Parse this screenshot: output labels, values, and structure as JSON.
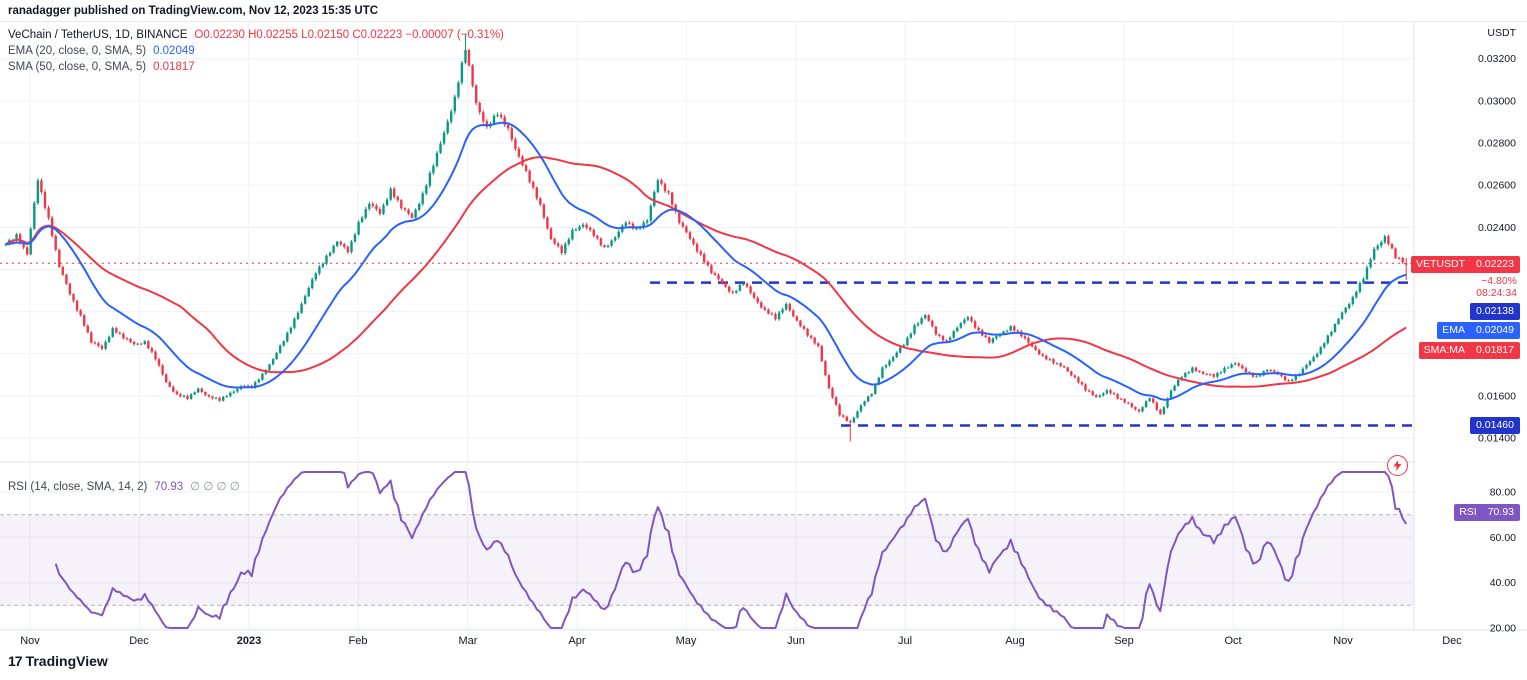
{
  "header": {
    "published_line": "ranadagger published on TradingView.com, Nov 12, 2023 15:35 UTC"
  },
  "legend": {
    "series_title": "VeChain / TetherUS, 1D, BINANCE",
    "ohlc": "O0.02230  H0.02255  L0.02150  C0.02223  −0.00007 (−0.31%)",
    "ema_label": "EMA (20, close, 0, SMA, 5)",
    "ema_value": "0.02049",
    "sma_label": "SMA (50, close, 0, SMA, 5)",
    "sma_value": "0.01817",
    "rsi_label": "RSI (14, close, SMA, 14, 2)",
    "rsi_value": "70.93",
    "rsi_hidden": "∅ ∅ ∅ ∅"
  },
  "axis": {
    "currency": "USDT",
    "price_tick_labels": [
      "0.03200",
      "0.03000",
      "0.02800",
      "0.02600",
      "0.02400",
      "0.01600",
      "0.01400"
    ],
    "price_tick_values": [
      0.032,
      0.03,
      0.028,
      0.026,
      0.024,
      0.016,
      0.014
    ],
    "rsi_tick_labels": [
      "80.00",
      "60.00",
      "40.00",
      "20.00"
    ],
    "rsi_tick_values": [
      80,
      60,
      40,
      20
    ],
    "symbol_badge": {
      "label": "VETUSDT",
      "value": "0.02223"
    },
    "countdown": {
      "change_pct": "−4.80%",
      "time": "08:24:34"
    },
    "level_badges": [
      "0.02138",
      "0.01460"
    ],
    "ema_badge": {
      "label": "EMA",
      "value": "0.02049"
    },
    "sma_badge": {
      "label": "SMA:MA",
      "value": "0.01817"
    },
    "rsi_badge": {
      "label": "RSI",
      "value": "70.93"
    }
  },
  "footer": {
    "logo_mark": "17",
    "brand": "TradingView"
  },
  "colors": {
    "up": "#089981",
    "down": "#f23645",
    "ema": "#2962ff",
    "sma": "#f23645",
    "rsi": "#7e57c2",
    "level": "#2235cb",
    "grid": "#eef1f7",
    "separator": "#e0e3eb",
    "axis_text": "#131722"
  },
  "chart_data": {
    "type": "candlestick",
    "title": "VeChain / TetherUS, 1D, BINANCE",
    "symbol": "VETUSDT",
    "interval": "1D",
    "exchange": "BINANCE",
    "last": {
      "open": 0.0223,
      "high": 0.02255,
      "low": 0.0215,
      "close": 0.02223,
      "change": -7e-05,
      "change_pct": -0.31
    },
    "indicators": {
      "ema20": 0.02049,
      "sma50": 0.01817,
      "rsi14": 70.93,
      "ema_period": 20,
      "sma_period": 50,
      "rsi_period": 14
    },
    "levels": [
      {
        "price": 0.02138,
        "style": "dashed",
        "start_frac": 0.46
      },
      {
        "price": 0.0146,
        "style": "dashed",
        "start_frac": 0.595
      }
    ],
    "current_price_line": 0.0223,
    "price_ylim": [
      0.0132,
      0.0336
    ],
    "rsi_band": [
      30,
      70
    ],
    "x_labels": [
      "Nov",
      "Dec",
      "2023",
      "Feb",
      "Mar",
      "Apr",
      "May",
      "Jun",
      "Jul",
      "Aug",
      "Sep",
      "Oct",
      "Nov",
      "Dec"
    ],
    "closes_sampled_3d": [
      0.0232,
      0.0236,
      0.0228,
      0.0262,
      0.0244,
      0.0222,
      0.0208,
      0.0198,
      0.0186,
      0.0182,
      0.0192,
      0.0188,
      0.0184,
      0.0186,
      0.0178,
      0.0166,
      0.0161,
      0.0159,
      0.0163,
      0.016,
      0.0158,
      0.0161,
      0.0165,
      0.0164,
      0.017,
      0.0178,
      0.0186,
      0.0196,
      0.0208,
      0.0218,
      0.0226,
      0.0234,
      0.0228,
      0.0242,
      0.0252,
      0.0246,
      0.0258,
      0.025,
      0.0244,
      0.0256,
      0.027,
      0.0284,
      0.0302,
      0.0325,
      0.0298,
      0.0288,
      0.0294,
      0.0286,
      0.0274,
      0.0262,
      0.025,
      0.0235,
      0.0228,
      0.0238,
      0.0242,
      0.0236,
      0.023,
      0.0236,
      0.0242,
      0.0239,
      0.0244,
      0.0262,
      0.0256,
      0.0243,
      0.0234,
      0.0227,
      0.0219,
      0.0213,
      0.0209,
      0.0214,
      0.0206,
      0.0201,
      0.0197,
      0.0203,
      0.0196,
      0.0189,
      0.0183,
      0.0164,
      0.0151,
      0.0147,
      0.0156,
      0.0161,
      0.0173,
      0.0179,
      0.0184,
      0.0193,
      0.0199,
      0.0189,
      0.0186,
      0.0193,
      0.0197,
      0.0191,
      0.0186,
      0.0189,
      0.0193,
      0.0189,
      0.0183,
      0.0179,
      0.0176,
      0.0173,
      0.0169,
      0.0163,
      0.0159,
      0.0163,
      0.0159,
      0.0156,
      0.0153,
      0.0159,
      0.0151,
      0.0163,
      0.0169,
      0.0173,
      0.0171,
      0.0169,
      0.0173,
      0.0176,
      0.0171,
      0.0169,
      0.0173,
      0.017,
      0.0167,
      0.0171,
      0.0176,
      0.0183,
      0.0191,
      0.0199,
      0.0207,
      0.0216,
      0.0229,
      0.0236,
      0.0226,
      0.02223
    ]
  }
}
